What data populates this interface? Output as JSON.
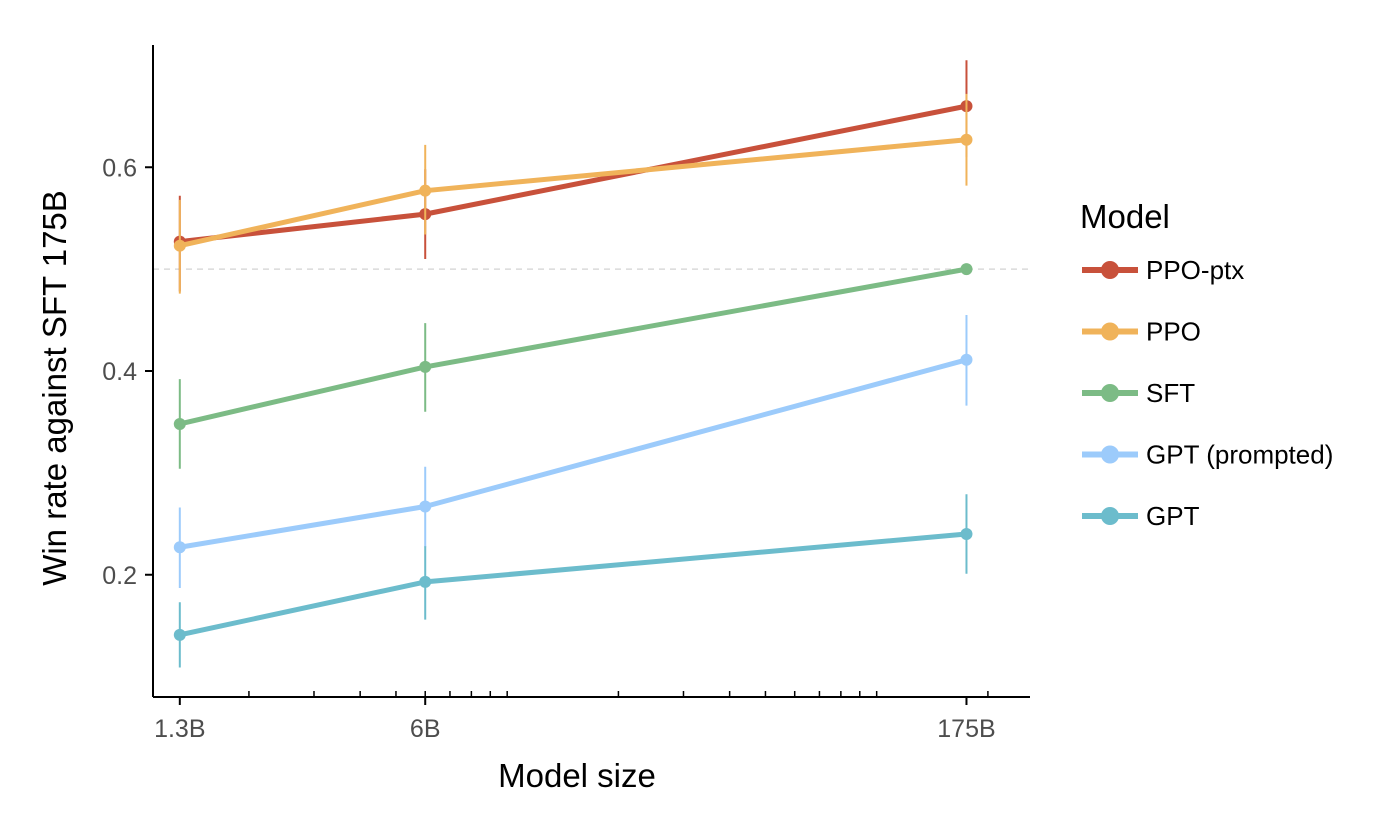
{
  "chart_data": {
    "type": "line",
    "xlabel": "Model size",
    "ylabel": "Win rate against SFT 175B",
    "x_scale": "log",
    "x_unit": "billion parameters",
    "x": [
      1.3,
      6,
      175
    ],
    "x_tick_labels": [
      "1.3B",
      "6B",
      "175B"
    ],
    "xlim": [
      1.1,
      260
    ],
    "ylim": [
      0.08,
      0.72
    ],
    "y_ticks": [
      0.2,
      0.4,
      0.6
    ],
    "y_tick_labels": [
      "0.2",
      "0.4",
      "0.6"
    ],
    "reference_line": 0.5,
    "legend": {
      "title": "Model",
      "position": "right"
    },
    "series": [
      {
        "name": "PPO-ptx",
        "color": "#c8513b",
        "values": [
          0.527,
          0.554,
          0.66
        ],
        "err_low": [
          0.478,
          0.51,
          0.61
        ],
        "err_high": [
          0.572,
          0.598,
          0.705
        ]
      },
      {
        "name": "PPO",
        "color": "#f0b35a",
        "values": [
          0.523,
          0.577,
          0.627
        ],
        "err_low": [
          0.476,
          0.534,
          0.582
        ],
        "err_high": [
          0.568,
          0.622,
          0.672
        ]
      },
      {
        "name": "SFT",
        "color": "#7cbb85",
        "values": [
          0.348,
          0.404,
          0.5
        ],
        "err_low": [
          0.304,
          0.36,
          0.5
        ],
        "err_high": [
          0.392,
          0.447,
          0.5
        ]
      },
      {
        "name": "GPT (prompted)",
        "color": "#9ccbfb",
        "values": [
          0.227,
          0.267,
          0.411
        ],
        "err_low": [
          0.187,
          0.227,
          0.366
        ],
        "err_high": [
          0.266,
          0.306,
          0.455
        ]
      },
      {
        "name": "GPT",
        "color": "#6cbccc",
        "values": [
          0.141,
          0.193,
          0.24
        ],
        "err_low": [
          0.109,
          0.156,
          0.201
        ],
        "err_high": [
          0.173,
          0.228,
          0.279
        ]
      }
    ]
  }
}
